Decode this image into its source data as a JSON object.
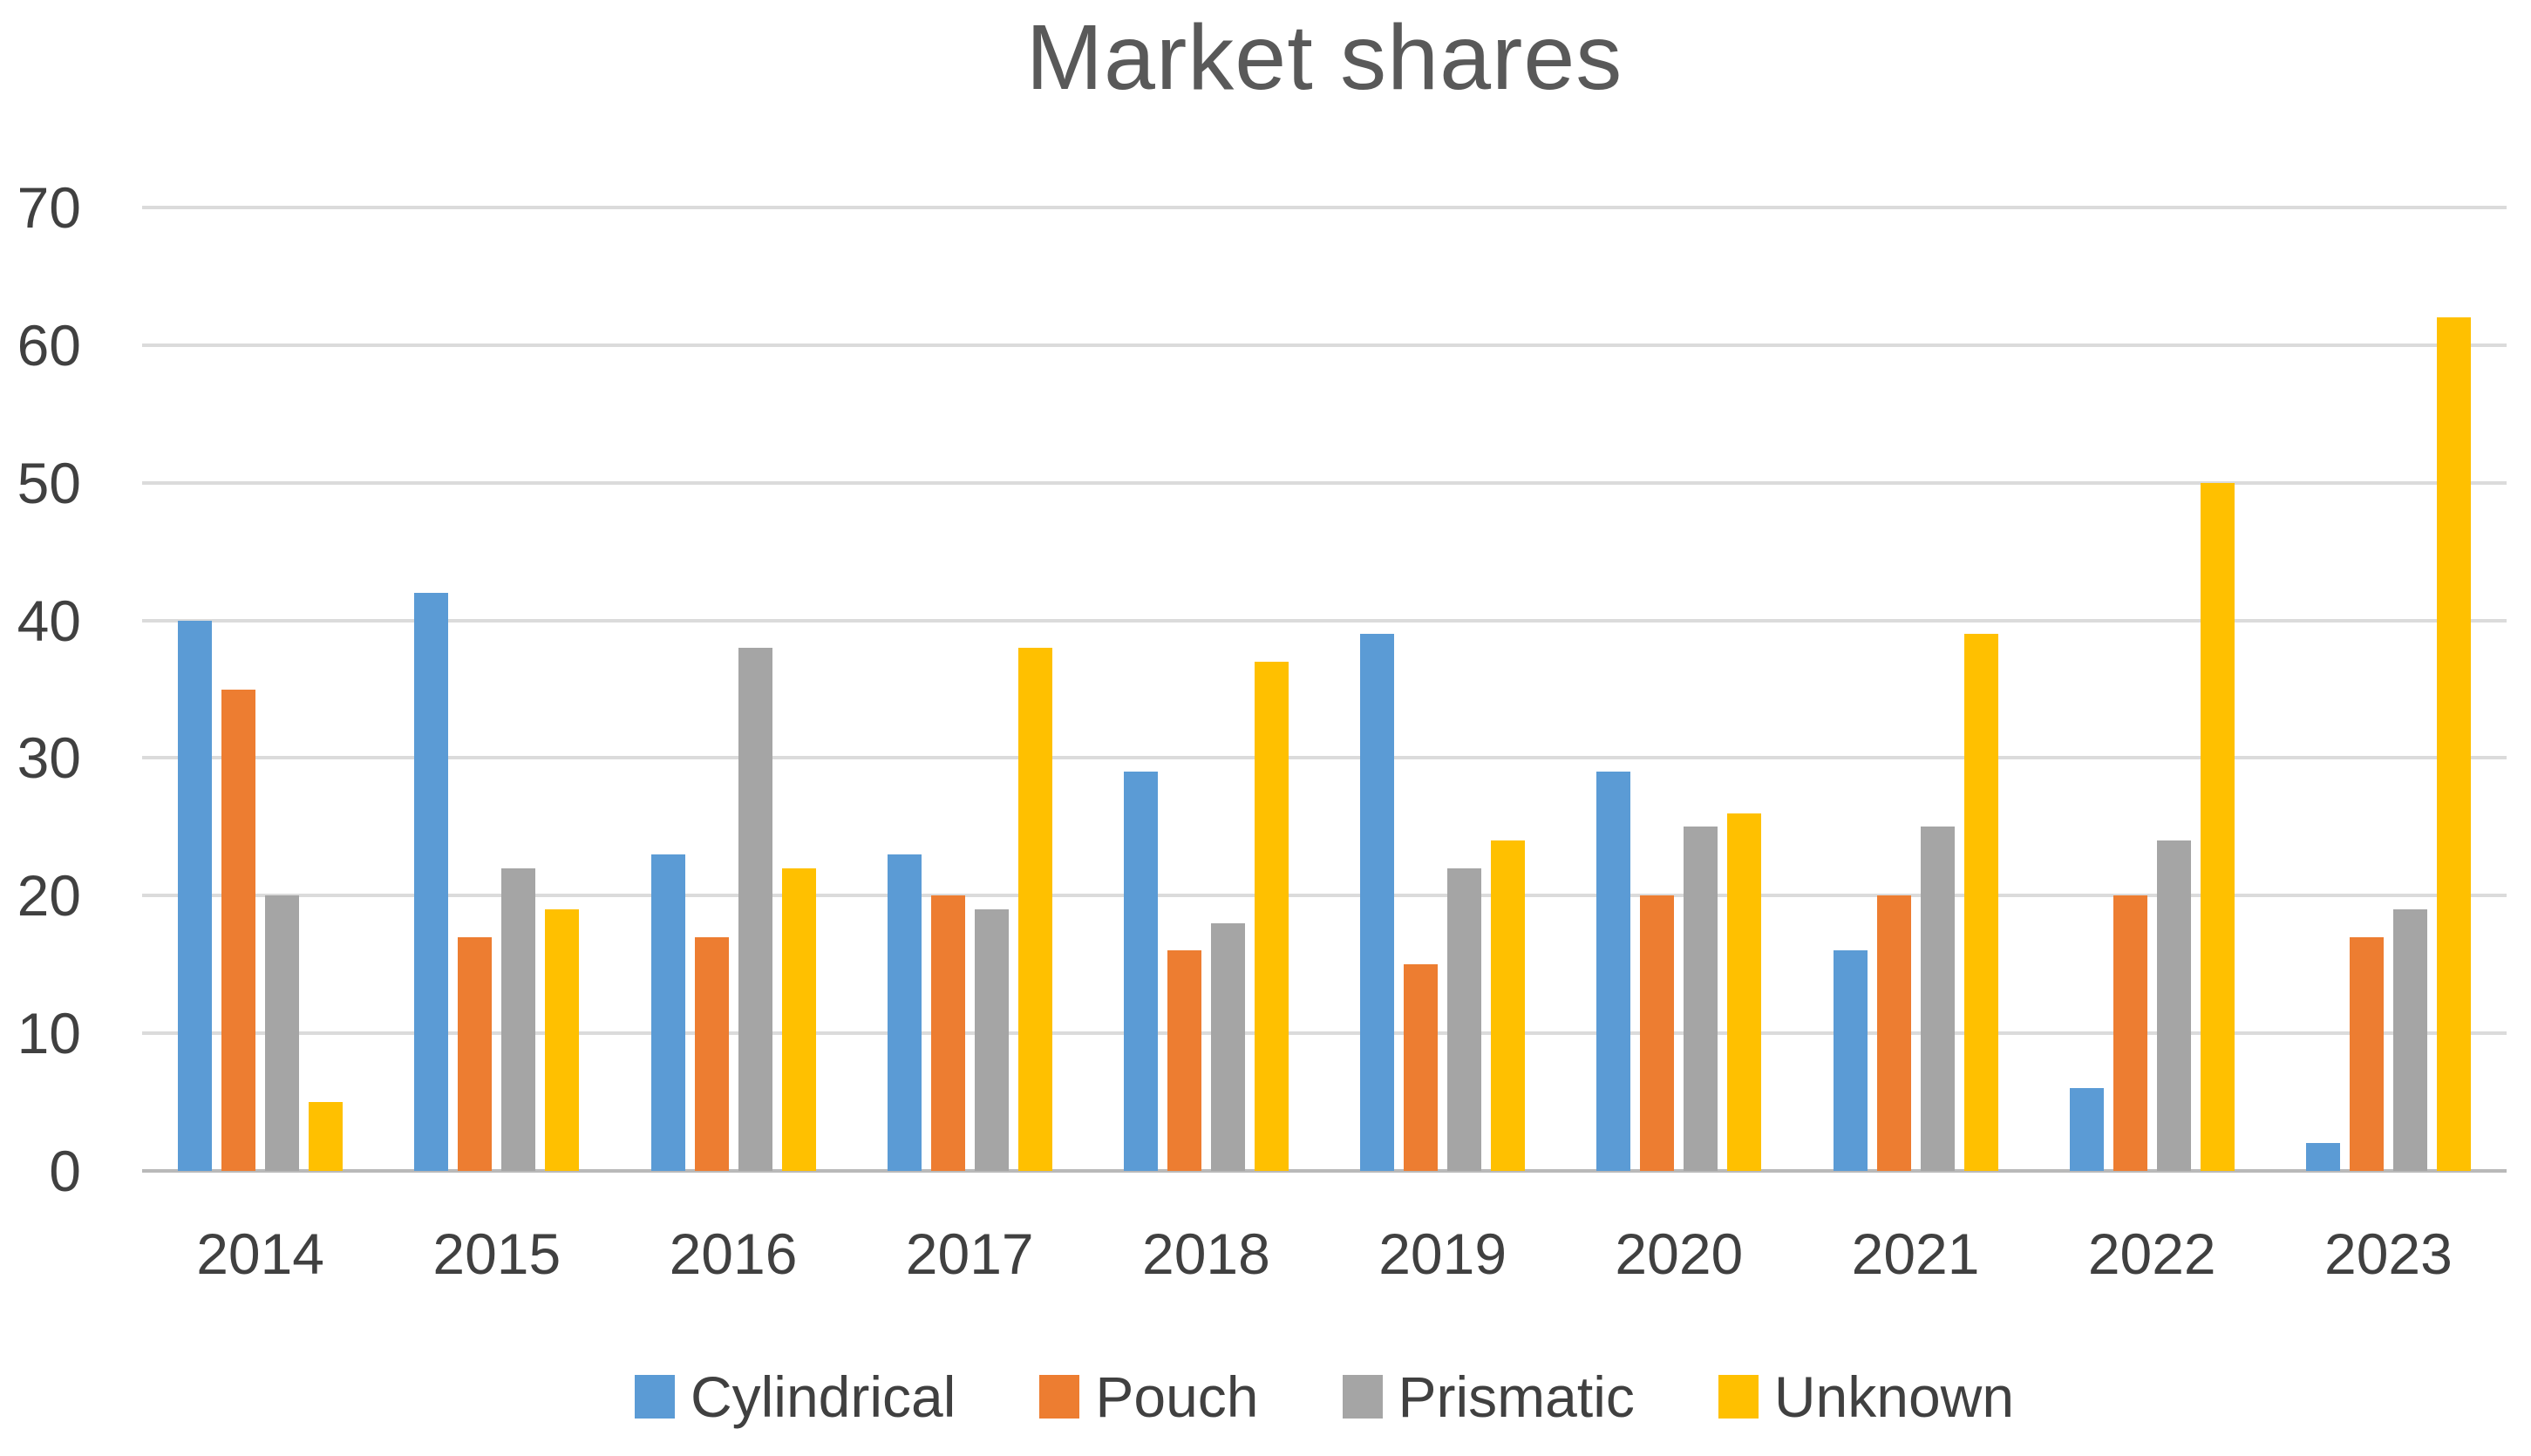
{
  "chart": {
    "title": "Market shares"
  },
  "chart_data": {
    "type": "bar",
    "title": "Market shares",
    "categories": [
      "2014",
      "2015",
      "2016",
      "2017",
      "2018",
      "2019",
      "2020",
      "2021",
      "2022",
      "2023"
    ],
    "series": [
      {
        "name": "Cylindrical",
        "color": "#5B9BD5",
        "values": [
          40,
          42,
          23,
          23,
          29,
          39,
          29,
          16,
          6,
          2
        ]
      },
      {
        "name": "Pouch",
        "color": "#ED7D31",
        "values": [
          35,
          17,
          17,
          20,
          16,
          15,
          20,
          20,
          20,
          17
        ]
      },
      {
        "name": "Prismatic",
        "color": "#A5A5A5",
        "values": [
          20,
          22,
          38,
          19,
          18,
          22,
          25,
          25,
          24,
          19
        ]
      },
      {
        "name": "Unknown",
        "color": "#FFC000",
        "values": [
          5,
          19,
          22,
          38,
          37,
          24,
          26,
          39,
          50,
          62
        ]
      }
    ],
    "xlabel": "",
    "ylabel": "",
    "ylim": [
      0,
      70
    ],
    "y_ticks": [
      0,
      10,
      20,
      30,
      40,
      50,
      60,
      70
    ],
    "grid": true,
    "legend_position": "bottom",
    "colors": {
      "gridline": "#DBDBDB",
      "axis_line": "#B9B9B9",
      "axis_text": "#404040",
      "title_text": "#595959",
      "background": "#FFFFFF"
    }
  }
}
